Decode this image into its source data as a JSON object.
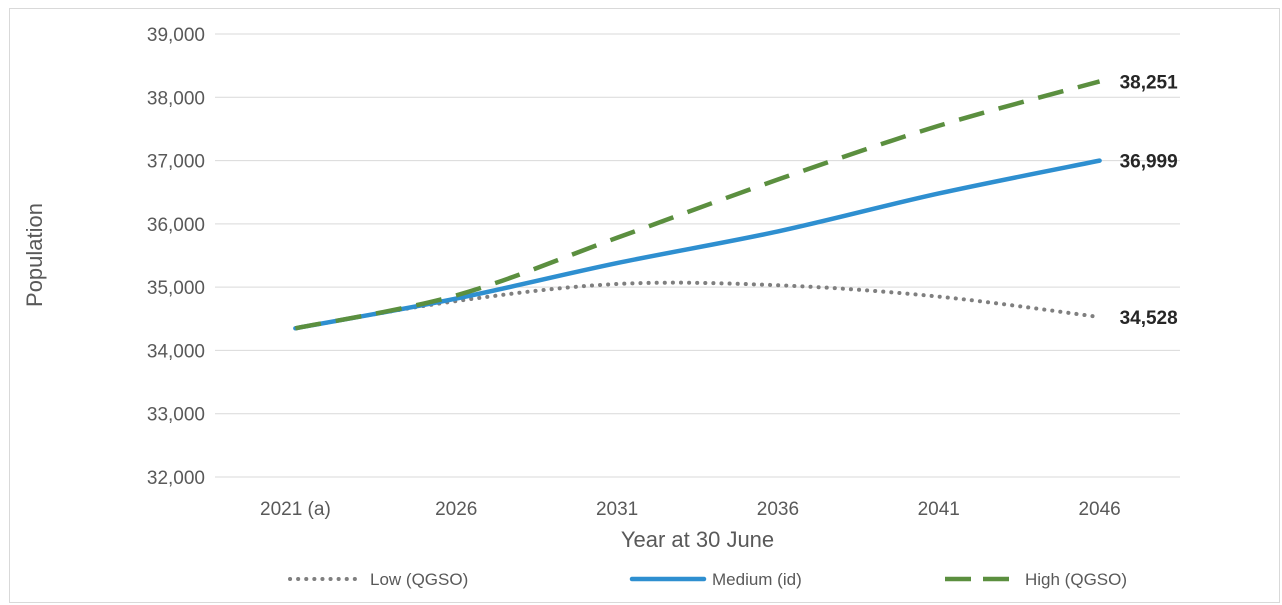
{
  "chart_data": {
    "type": "line",
    "title": "",
    "xlabel": "Year at 30 June",
    "ylabel": "Population",
    "categories": [
      "2021 (a)",
      "2026",
      "2031",
      "2036",
      "2041",
      "2046"
    ],
    "ylim": [
      32000,
      39000
    ],
    "yticks": [
      "32,000",
      "33,000",
      "34,000",
      "35,000",
      "36,000",
      "37,000",
      "38,000",
      "39,000"
    ],
    "grid": "horizontal",
    "legend_position": "bottom",
    "series": [
      {
        "name": "Low (QGSO)",
        "values": [
          34350,
          34780,
          35050,
          35030,
          34850,
          34528
        ],
        "color": "#7f7f7f",
        "style": "dotted",
        "end_label": "34,528"
      },
      {
        "name": "Medium (id)",
        "values": [
          34350,
          34820,
          35380,
          35880,
          36480,
          36999
        ],
        "color": "#2e8fd0",
        "style": "solid",
        "end_label": "36,999"
      },
      {
        "name": "High (QGSO)",
        "values": [
          34350,
          34870,
          35780,
          36700,
          37550,
          38251
        ],
        "color": "#5b8f3f",
        "style": "dashed",
        "end_label": "38,251"
      }
    ]
  }
}
